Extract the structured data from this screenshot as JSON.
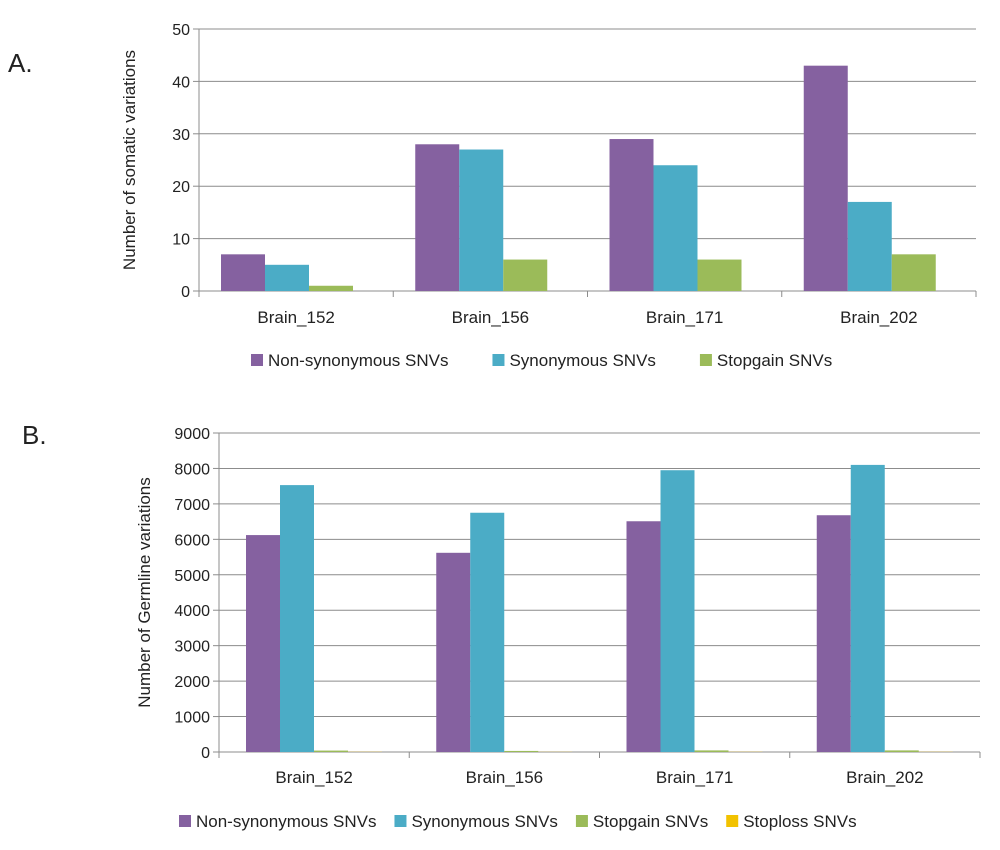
{
  "panel_labels": [
    "A.",
    "B."
  ],
  "chart_data": [
    {
      "type": "bar",
      "title": "",
      "xlabel": "",
      "ylabel": "Number of somatic variations",
      "ylim": [
        0,
        50
      ],
      "yticks": [
        0,
        10,
        20,
        30,
        40,
        50
      ],
      "grid": true,
      "legend": "bottom",
      "categories": [
        "Brain_152",
        "Brain_156",
        "Brain_171",
        "Brain_202"
      ],
      "series": [
        {
          "name": "Non-synonymous SNVs",
          "color": "#8561a0",
          "values": [
            7,
            28,
            29,
            43
          ]
        },
        {
          "name": "Synonymous SNVs",
          "color": "#4bacc6",
          "values": [
            5,
            27,
            24,
            17
          ]
        },
        {
          "name": "Stopgain SNVs",
          "color": "#9bbb59",
          "values": [
            1,
            6,
            6,
            7
          ]
        }
      ]
    },
    {
      "type": "bar",
      "title": "",
      "xlabel": "",
      "ylabel": "Number of Germline variations",
      "ylim": [
        0,
        9000
      ],
      "yticks": [
        0,
        1000,
        2000,
        3000,
        4000,
        5000,
        6000,
        7000,
        8000,
        9000
      ],
      "grid": true,
      "legend": "bottom",
      "categories": [
        "Brain_152",
        "Brain_156",
        "Brain_171",
        "Brain_202"
      ],
      "series": [
        {
          "name": "Non-synonymous SNVs",
          "color": "#8561a0",
          "values": [
            6120,
            5620,
            6510,
            6680
          ]
        },
        {
          "name": "Synonymous SNVs",
          "color": "#4bacc6",
          "values": [
            7530,
            6750,
            7950,
            8100
          ]
        },
        {
          "name": "Stopgain SNVs",
          "color": "#9bbb59",
          "values": [
            40,
            30,
            45,
            45
          ]
        },
        {
          "name": "Stoploss SNVs",
          "color": "#f2c200",
          "values": [
            5,
            4,
            5,
            5
          ]
        }
      ]
    }
  ]
}
